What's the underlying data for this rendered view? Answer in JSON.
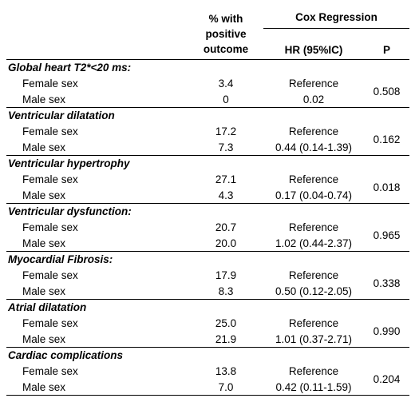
{
  "header": {
    "pct_line1": "% with",
    "pct_line2": "positive",
    "pct_line3": "outcome",
    "cox": "Cox Regression",
    "hr": "HR (95%IC)",
    "p": "P"
  },
  "sections": [
    {
      "title": "Global heart T2*<20 ms:",
      "rows": [
        {
          "label": "Female sex",
          "value": "3.4",
          "hr": "Reference"
        },
        {
          "label": "Male sex",
          "value": "0",
          "hr": "0.02"
        }
      ],
      "p": "0.508"
    },
    {
      "title": "Ventricular dilatation",
      "rows": [
        {
          "label": "Female sex",
          "value": "17.2",
          "hr": "Reference"
        },
        {
          "label": "Male sex",
          "value": "7.3",
          "hr": "0.44 (0.14-1.39)"
        }
      ],
      "p": "0.162"
    },
    {
      "title": "Ventricular hypertrophy",
      "rows": [
        {
          "label": "Female sex",
          "value": "27.1",
          "hr": "Reference"
        },
        {
          "label": "Male sex",
          "value": "4.3",
          "hr": "0.17 (0.04-0.74)"
        }
      ],
      "p": "0.018"
    },
    {
      "title": "Ventricular dysfunction:",
      "rows": [
        {
          "label": "Female sex",
          "value": "20.7",
          "hr": "Reference"
        },
        {
          "label": "Male sex",
          "value": "20.0",
          "hr": "1.02 (0.44-2.37)"
        }
      ],
      "p": "0.965"
    },
    {
      "title": "Myocardial Fibrosis:",
      "rows": [
        {
          "label": "Female sex",
          "value": "17.9",
          "hr": "Reference"
        },
        {
          "label": "Male sex",
          "value": "8.3",
          "hr": "0.50 (0.12-2.05)"
        }
      ],
      "p": "0.338"
    },
    {
      "title": "Atrial dilatation",
      "rows": [
        {
          "label": "Female sex",
          "value": "25.0",
          "hr": "Reference"
        },
        {
          "label": "Male sex",
          "value": "21.9",
          "hr": "1.01 (0.37-2.71)"
        }
      ],
      "p": "0.990"
    },
    {
      "title": "Cardiac complications",
      "rows": [
        {
          "label": "Female sex",
          "value": "13.8",
          "hr": "Reference"
        },
        {
          "label": "Male sex",
          "value": "7.0",
          "hr": "0.42 (0.11-1.59)"
        }
      ],
      "p": "0.204"
    }
  ]
}
